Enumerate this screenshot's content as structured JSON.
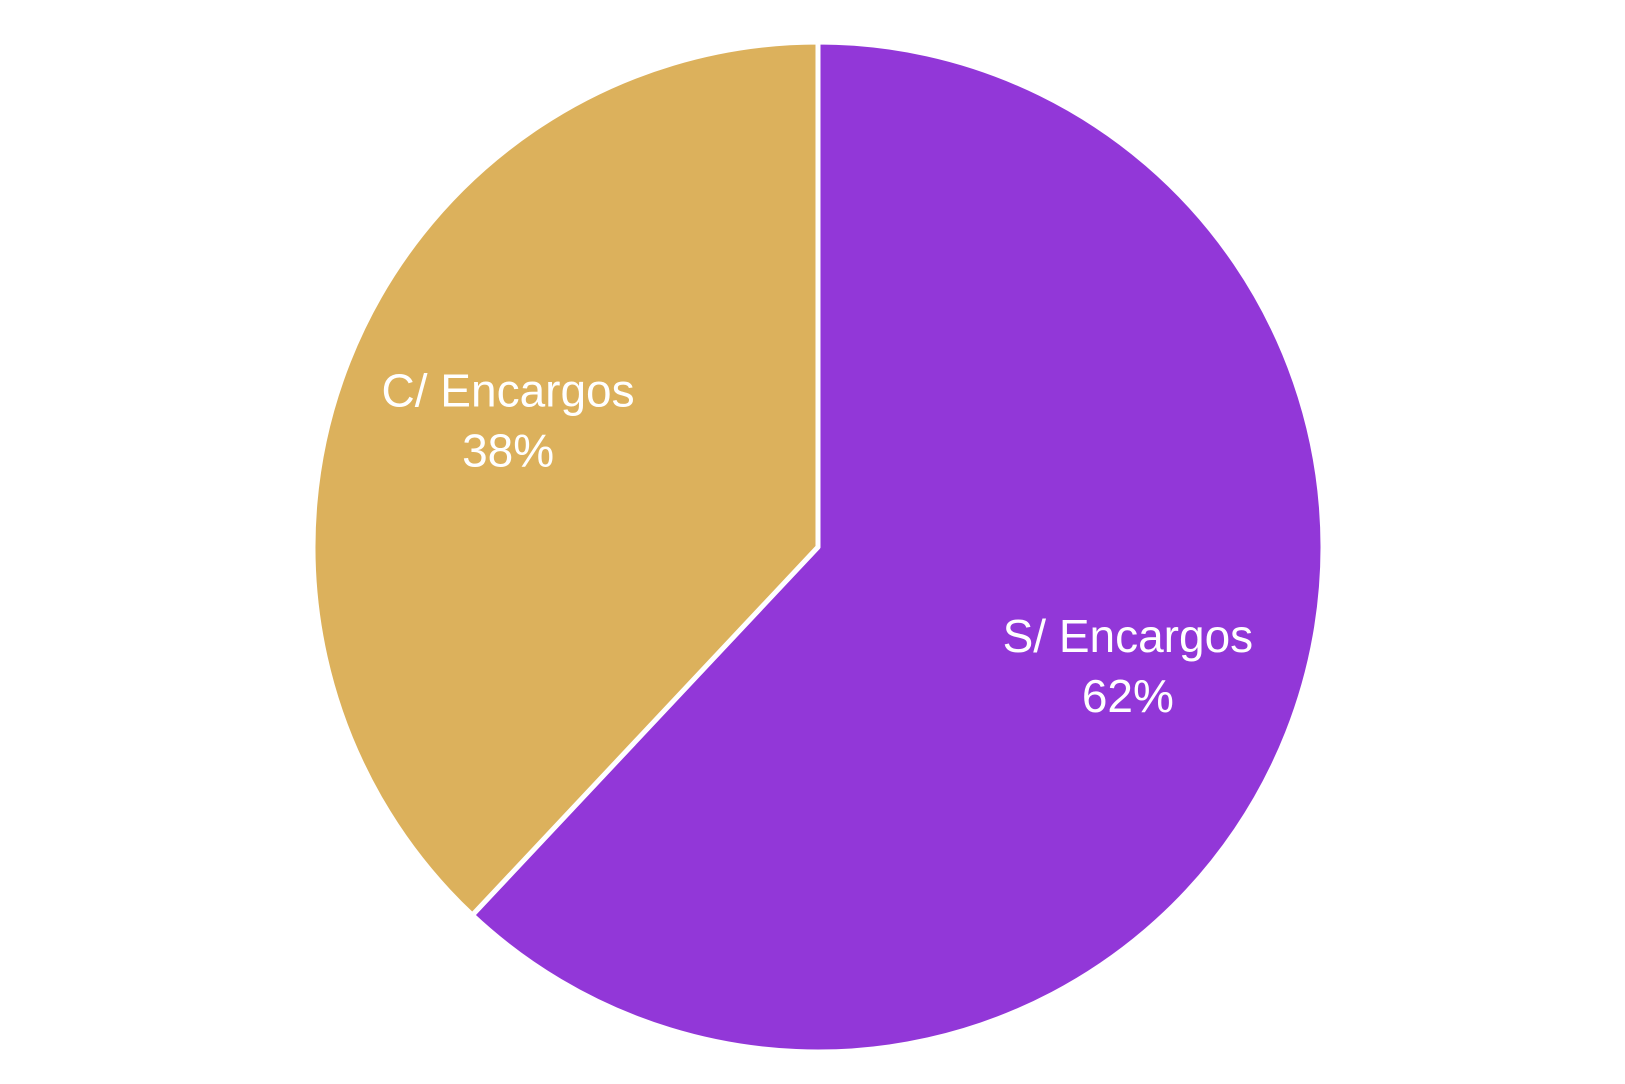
{
  "chart_data": {
    "type": "pie",
    "categories": [
      "S/ Encargos",
      "C/ Encargos"
    ],
    "values": [
      62,
      38
    ],
    "value_labels": [
      "62%",
      "38%"
    ],
    "colors": [
      "#9237d8",
      "#dcb15c"
    ]
  }
}
